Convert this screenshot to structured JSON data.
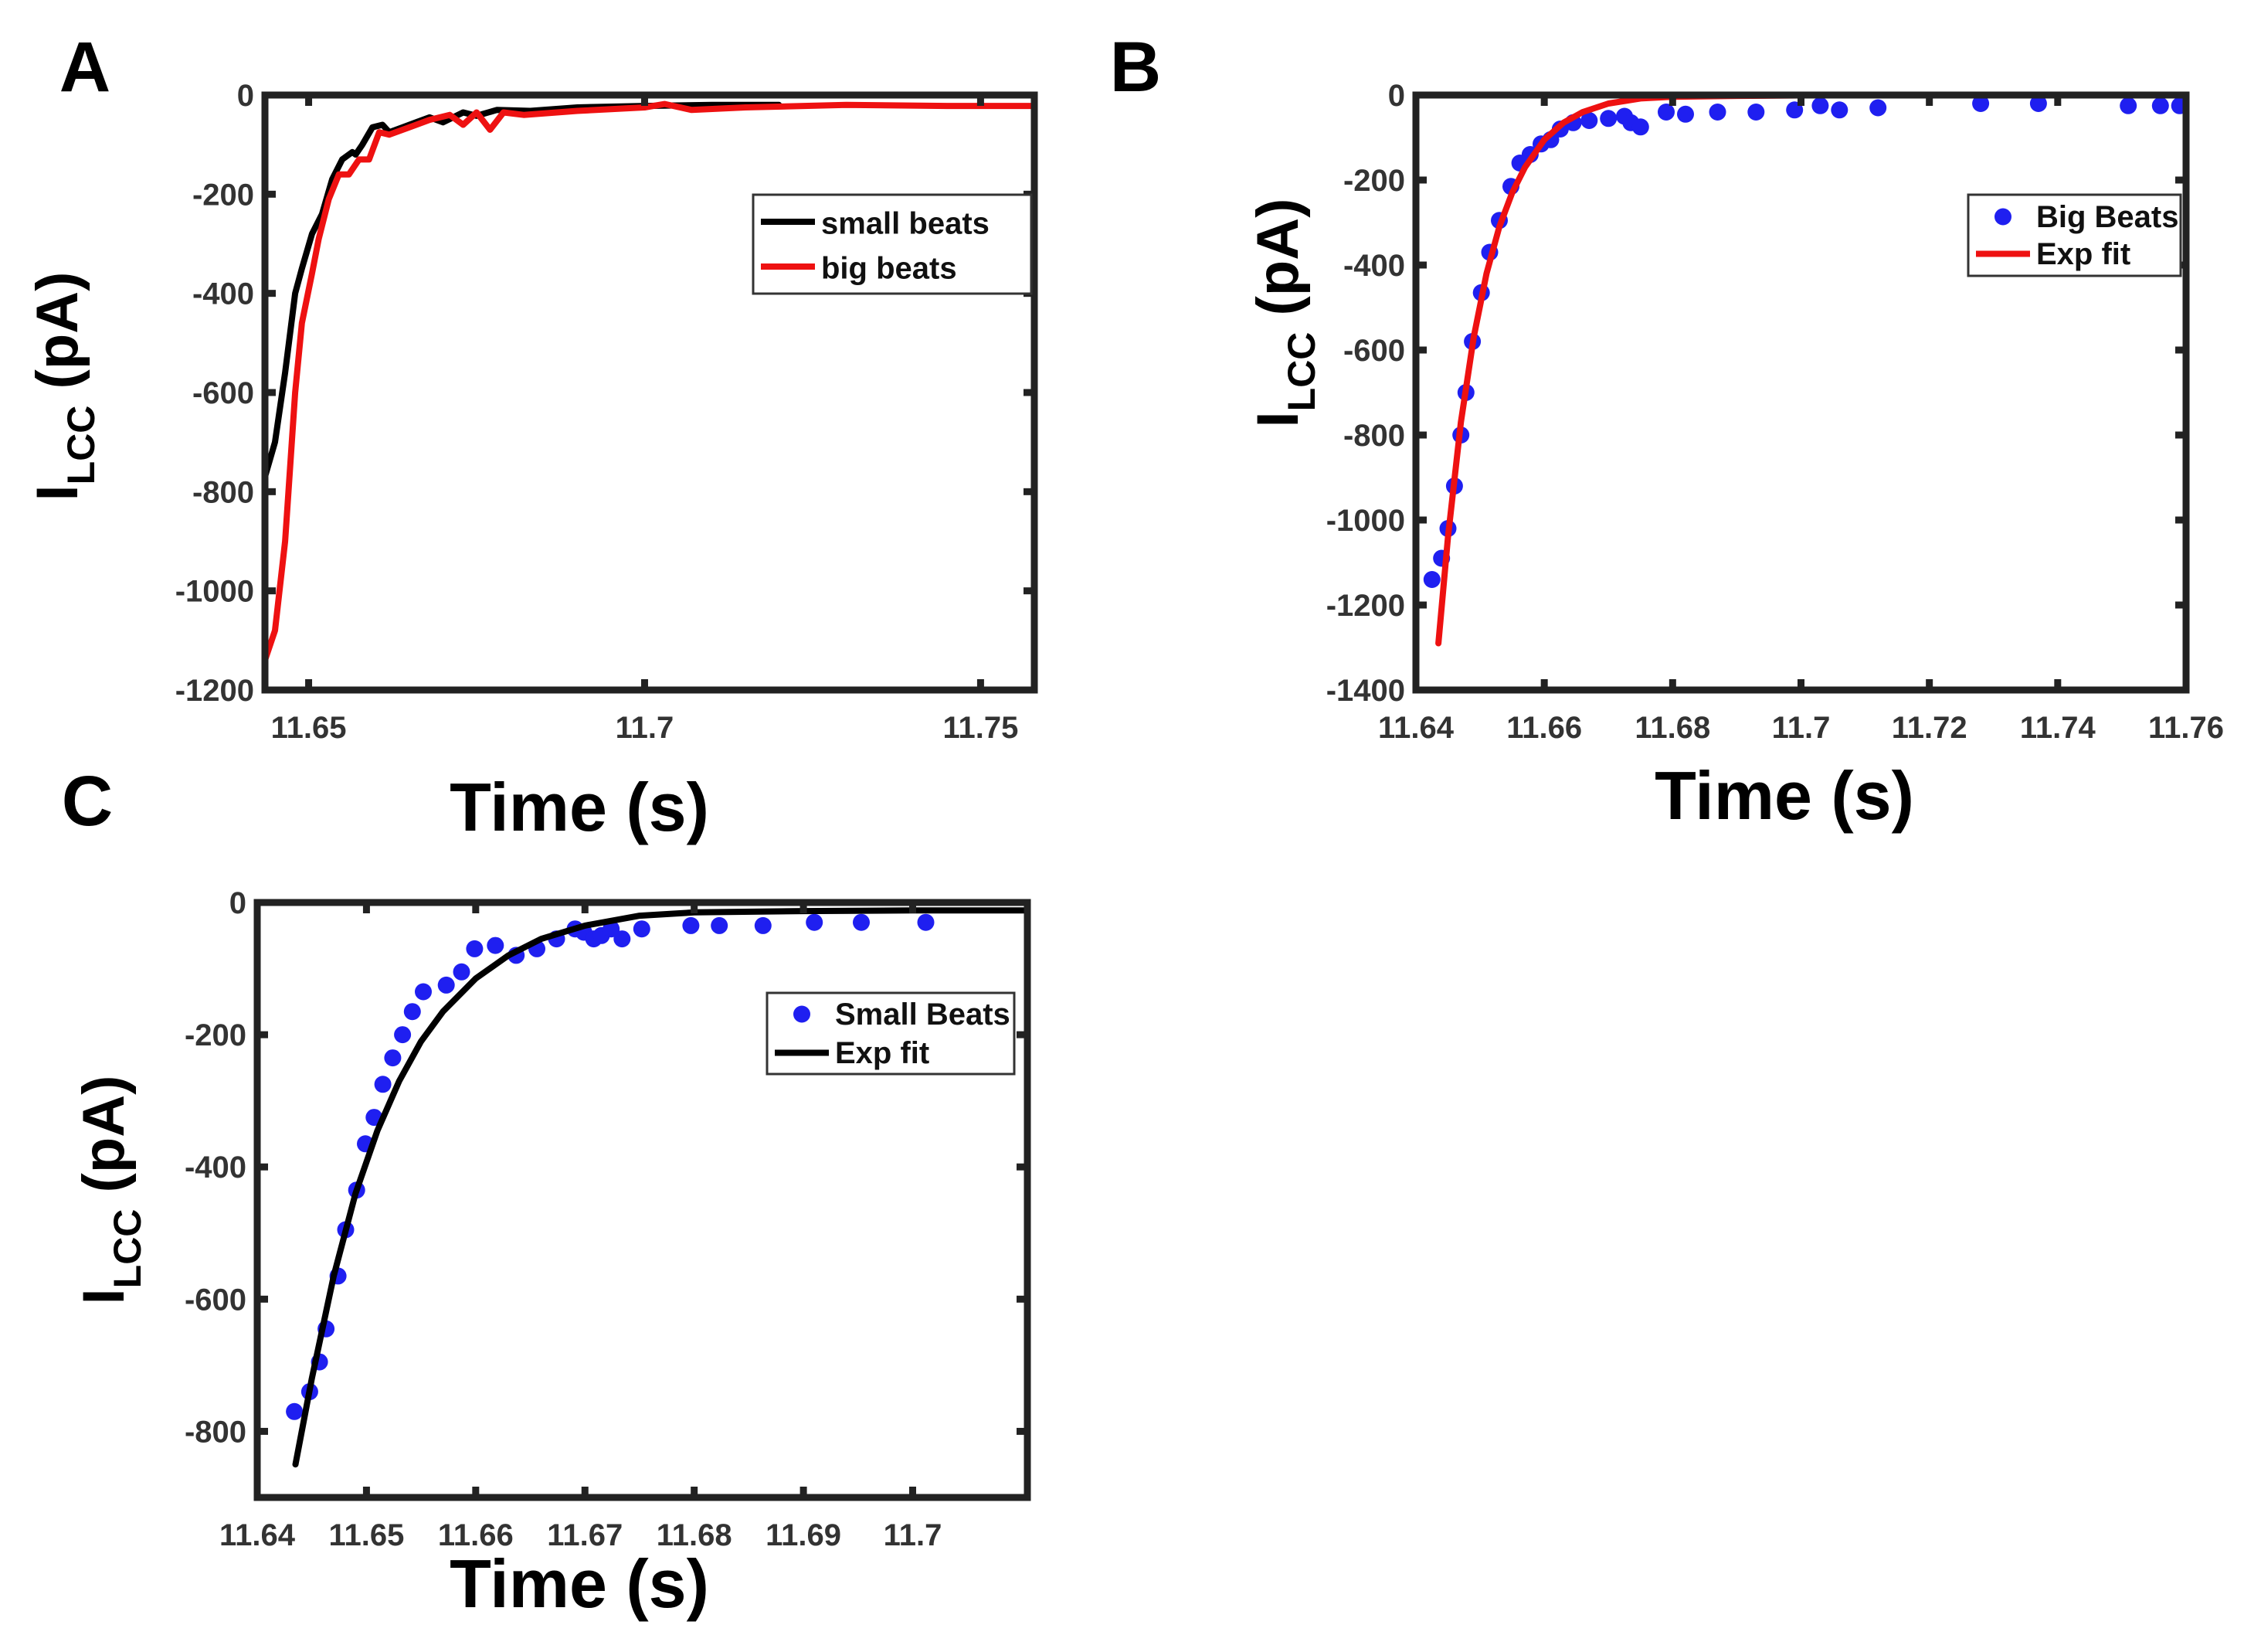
{
  "colors": {
    "blue": "#1f1ff0",
    "red": "#ee1111",
    "black": "#000000",
    "axis": "#222222"
  },
  "chart_data": [
    {
      "panel": "A",
      "type": "line",
      "xlabel": "Time (s)",
      "ylabel_main": "I",
      "ylabel_sub": "LCC",
      "ylabel_unit": "(pA)",
      "xlim": [
        11.6435,
        11.758
      ],
      "ylim": [
        -1200,
        0
      ],
      "xticks": [
        11.65,
        11.7,
        11.75
      ],
      "xtick_labels": [
        "11.65",
        "11.7",
        "11.75"
      ],
      "yticks": [
        0,
        -200,
        -400,
        -600,
        -800,
        -1000,
        -1200
      ],
      "ytick_labels": [
        "0",
        "-200",
        "-400",
        "-600",
        "-800",
        "-1000",
        "-1200"
      ],
      "legend_position": "top-right",
      "series": [
        {
          "name": "small beats",
          "kind": "line",
          "color": "#000000",
          "x": [
            11.6435,
            11.645,
            11.6465,
            11.648,
            11.649,
            11.6505,
            11.652,
            11.6535,
            11.655,
            11.6565,
            11.657,
            11.658,
            11.6595,
            11.661,
            11.662,
            11.664,
            11.666,
            11.668,
            11.67,
            11.673,
            11.675,
            11.678,
            11.683,
            11.69,
            11.7,
            11.71,
            11.72
          ],
          "y": [
            -770,
            -700,
            -560,
            -400,
            -350,
            -280,
            -240,
            -170,
            -130,
            -115,
            -120,
            -100,
            -65,
            -60,
            -75,
            -65,
            -55,
            -45,
            -55,
            -35,
            -42,
            -30,
            -32,
            -25,
            -22,
            -20,
            -20
          ]
        },
        {
          "name": "big beats",
          "kind": "line",
          "color": "#ee1111",
          "x": [
            11.6435,
            11.645,
            11.6465,
            11.648,
            11.649,
            11.6505,
            11.6515,
            11.653,
            11.6545,
            11.656,
            11.6575,
            11.659,
            11.6605,
            11.662,
            11.665,
            11.668,
            11.671,
            11.673,
            11.675,
            11.677,
            11.679,
            11.682,
            11.69,
            11.7,
            11.703,
            11.707,
            11.715,
            11.73,
            11.745,
            11.758
          ],
          "y": [
            -1140,
            -1080,
            -900,
            -600,
            -460,
            -360,
            -290,
            -210,
            -160,
            -160,
            -130,
            -130,
            -75,
            -80,
            -65,
            -50,
            -40,
            -60,
            -35,
            -70,
            -35,
            -40,
            -32,
            -25,
            -18,
            -30,
            -25,
            -20,
            -22,
            -22
          ]
        }
      ]
    },
    {
      "panel": "B",
      "type": "scatter",
      "xlabel": "Time (s)",
      "ylabel_main": "I",
      "ylabel_sub": "LCC",
      "ylabel_unit": "(pA)",
      "xlim": [
        11.64,
        11.76
      ],
      "ylim": [
        -1400,
        0
      ],
      "xticks": [
        11.64,
        11.66,
        11.68,
        11.7,
        11.72,
        11.74,
        11.76
      ],
      "xtick_labels": [
        "11.64",
        "11.66",
        "11.68",
        "11.7",
        "11.72",
        "11.74",
        "11.76"
      ],
      "yticks": [
        0,
        -200,
        -400,
        -600,
        -800,
        -1000,
        -1200,
        -1400
      ],
      "ytick_labels": [
        "0",
        "-200",
        "-400",
        "-600",
        "-800",
        "-1000",
        "-1200",
        "-1400"
      ],
      "legend_position": "top-right",
      "series": [
        {
          "name": "Big Beats",
          "kind": "scatter",
          "color": "#1f1ff0",
          "x": [
            11.6425,
            11.644,
            11.645,
            11.646,
            11.647,
            11.6478,
            11.6488,
            11.6502,
            11.6515,
            11.653,
            11.6548,
            11.6562,
            11.6578,
            11.6595,
            11.661,
            11.6625,
            11.6645,
            11.667,
            11.67,
            11.6725,
            11.6735,
            11.675,
            11.679,
            11.682,
            11.687,
            11.693,
            11.699,
            11.703,
            11.706,
            11.712,
            11.728,
            11.737,
            11.751,
            11.756,
            11.759
          ],
          "y": [
            -1140,
            -1090,
            -1020,
            -920,
            -800,
            -700,
            -580,
            -465,
            -370,
            -295,
            -215,
            -160,
            -140,
            -115,
            -105,
            -80,
            -65,
            -60,
            -55,
            -50,
            -65,
            -75,
            -40,
            -45,
            -40,
            -40,
            -35,
            -25,
            -35,
            -30,
            -20,
            -20,
            -25,
            -25,
            -25
          ]
        },
        {
          "name": "Exp fit",
          "kind": "line",
          "color": "#ee1111",
          "x": [
            11.6435,
            11.645,
            11.647,
            11.649,
            11.651,
            11.653,
            11.655,
            11.657,
            11.66,
            11.663,
            11.666,
            11.67,
            11.675,
            11.68,
            11.69,
            11.7,
            11.72,
            11.74,
            11.758
          ],
          "y": [
            -1290,
            -1040,
            -770,
            -570,
            -420,
            -310,
            -230,
            -170,
            -105,
            -65,
            -40,
            -20,
            -8,
            -4,
            -2,
            -1,
            0,
            0,
            0
          ]
        }
      ]
    },
    {
      "panel": "C",
      "type": "scatter",
      "xlabel": "Time (s)",
      "ylabel_main": "I",
      "ylabel_sub": "LCC",
      "ylabel_unit": "(pA)",
      "xlim": [
        11.64,
        11.7105
      ],
      "ylim": [
        -900,
        0
      ],
      "xticks": [
        11.64,
        11.65,
        11.66,
        11.67,
        11.68,
        11.69,
        11.7
      ],
      "xtick_labels": [
        "11.64",
        "11.65",
        "11.66",
        "11.67",
        "11.68",
        "11.69",
        "11.7"
      ],
      "yticks": [
        0,
        -200,
        -400,
        -600,
        -800
      ],
      "ytick_labels": [
        "0",
        "-200",
        "-400",
        "-600",
        "-800"
      ],
      "legend_position": "top-right",
      "series": [
        {
          "name": "Small Beats",
          "kind": "scatter",
          "color": "#1f1ff0",
          "x": [
            11.6434,
            11.6448,
            11.6457,
            11.6463,
            11.6474,
            11.6481,
            11.6491,
            11.6499,
            11.6507,
            11.6515,
            11.6524,
            11.6533,
            11.6542,
            11.6552,
            11.6573,
            11.6587,
            11.6599,
            11.6618,
            11.6637,
            11.6656,
            11.6674,
            11.6691,
            11.6699,
            11.6708,
            11.6715,
            11.6724,
            11.6734,
            11.6752,
            11.6797,
            11.6823,
            11.6863,
            11.691,
            11.6953,
            11.7012
          ],
          "y": [
            -770,
            -740,
            -695,
            -645,
            -565,
            -495,
            -435,
            -365,
            -325,
            -275,
            -235,
            -200,
            -165,
            -135,
            -125,
            -105,
            -70,
            -65,
            -80,
            -70,
            -55,
            -40,
            -45,
            -55,
            -50,
            -40,
            -55,
            -40,
            -35,
            -35,
            -35,
            -30,
            -30,
            -30
          ]
        },
        {
          "name": "Exp fit",
          "kind": "line",
          "color": "#000000",
          "x": [
            11.6435,
            11.645,
            11.647,
            11.649,
            11.651,
            11.653,
            11.655,
            11.657,
            11.66,
            11.663,
            11.666,
            11.67,
            11.675,
            11.68,
            11.69,
            11.7,
            11.7105
          ],
          "y": [
            -850,
            -720,
            -565,
            -440,
            -345,
            -270,
            -210,
            -165,
            -115,
            -80,
            -55,
            -35,
            -20,
            -15,
            -13,
            -12,
            -12
          ]
        }
      ]
    }
  ]
}
